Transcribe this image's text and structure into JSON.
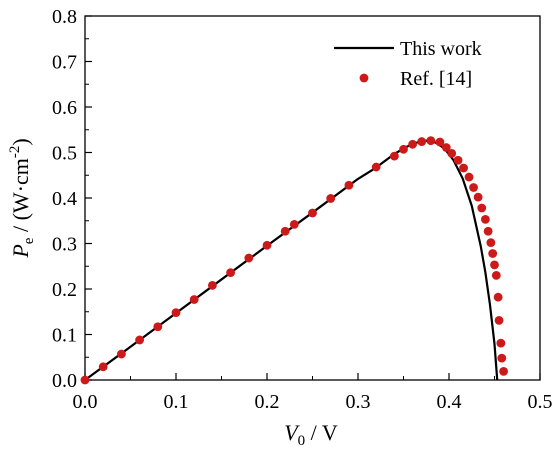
{
  "chart_data": {
    "type": "line",
    "xlim": [
      0.0,
      0.5
    ],
    "ylim": [
      0.0,
      0.8
    ],
    "x_ticks": [
      "0.0",
      "0.1",
      "0.2",
      "0.3",
      "0.4",
      "0.5"
    ],
    "y_ticks": [
      "0.0",
      "0.1",
      "0.2",
      "0.3",
      "0.4",
      "0.5",
      "0.6",
      "0.7",
      "0.8"
    ],
    "xlabel": {
      "main": "V",
      "sub": "0",
      "rest": " / V"
    },
    "ylabel": {
      "main": "P",
      "sub": "e",
      "rest": " / (W·cm",
      "sup": "-2",
      "close": ")"
    },
    "grid": false,
    "legend_position": "top-right",
    "series": [
      {
        "name": "This work",
        "style": "line",
        "color": "#000000",
        "x": [
          0.0,
          0.05,
          0.1,
          0.15,
          0.2,
          0.25,
          0.3,
          0.32,
          0.34,
          0.355,
          0.365,
          0.375,
          0.385,
          0.395,
          0.405,
          0.415,
          0.425,
          0.435,
          0.44,
          0.445,
          0.45,
          0.453
        ],
        "y": [
          0.0,
          0.073,
          0.147,
          0.221,
          0.295,
          0.368,
          0.442,
          0.467,
          0.497,
          0.514,
          0.522,
          0.526,
          0.522,
          0.509,
          0.483,
          0.443,
          0.383,
          0.293,
          0.236,
          0.166,
          0.079,
          0.0
        ]
      },
      {
        "name": "Ref. [14]",
        "style": "scatter",
        "color": "#cc1a1a",
        "x": [
          0.0,
          0.02,
          0.04,
          0.06,
          0.08,
          0.1,
          0.12,
          0.14,
          0.16,
          0.18,
          0.2,
          0.22,
          0.23,
          0.25,
          0.27,
          0.29,
          0.32,
          0.34,
          0.35,
          0.36,
          0.37,
          0.38,
          0.39,
          0.397,
          0.403,
          0.41,
          0.416,
          0.422,
          0.427,
          0.432,
          0.436,
          0.44,
          0.443,
          0.446,
          0.448,
          0.45,
          0.452,
          0.454,
          0.455,
          0.457,
          0.458,
          0.46
        ],
        "y": [
          0.0,
          0.029,
          0.057,
          0.088,
          0.117,
          0.148,
          0.177,
          0.208,
          0.236,
          0.268,
          0.296,
          0.327,
          0.342,
          0.367,
          0.399,
          0.428,
          0.468,
          0.492,
          0.507,
          0.518,
          0.524,
          0.526,
          0.523,
          0.511,
          0.498,
          0.483,
          0.466,
          0.446,
          0.423,
          0.402,
          0.378,
          0.353,
          0.327,
          0.302,
          0.278,
          0.253,
          0.23,
          0.182,
          0.131,
          0.081,
          0.048,
          0.019
        ]
      }
    ]
  }
}
